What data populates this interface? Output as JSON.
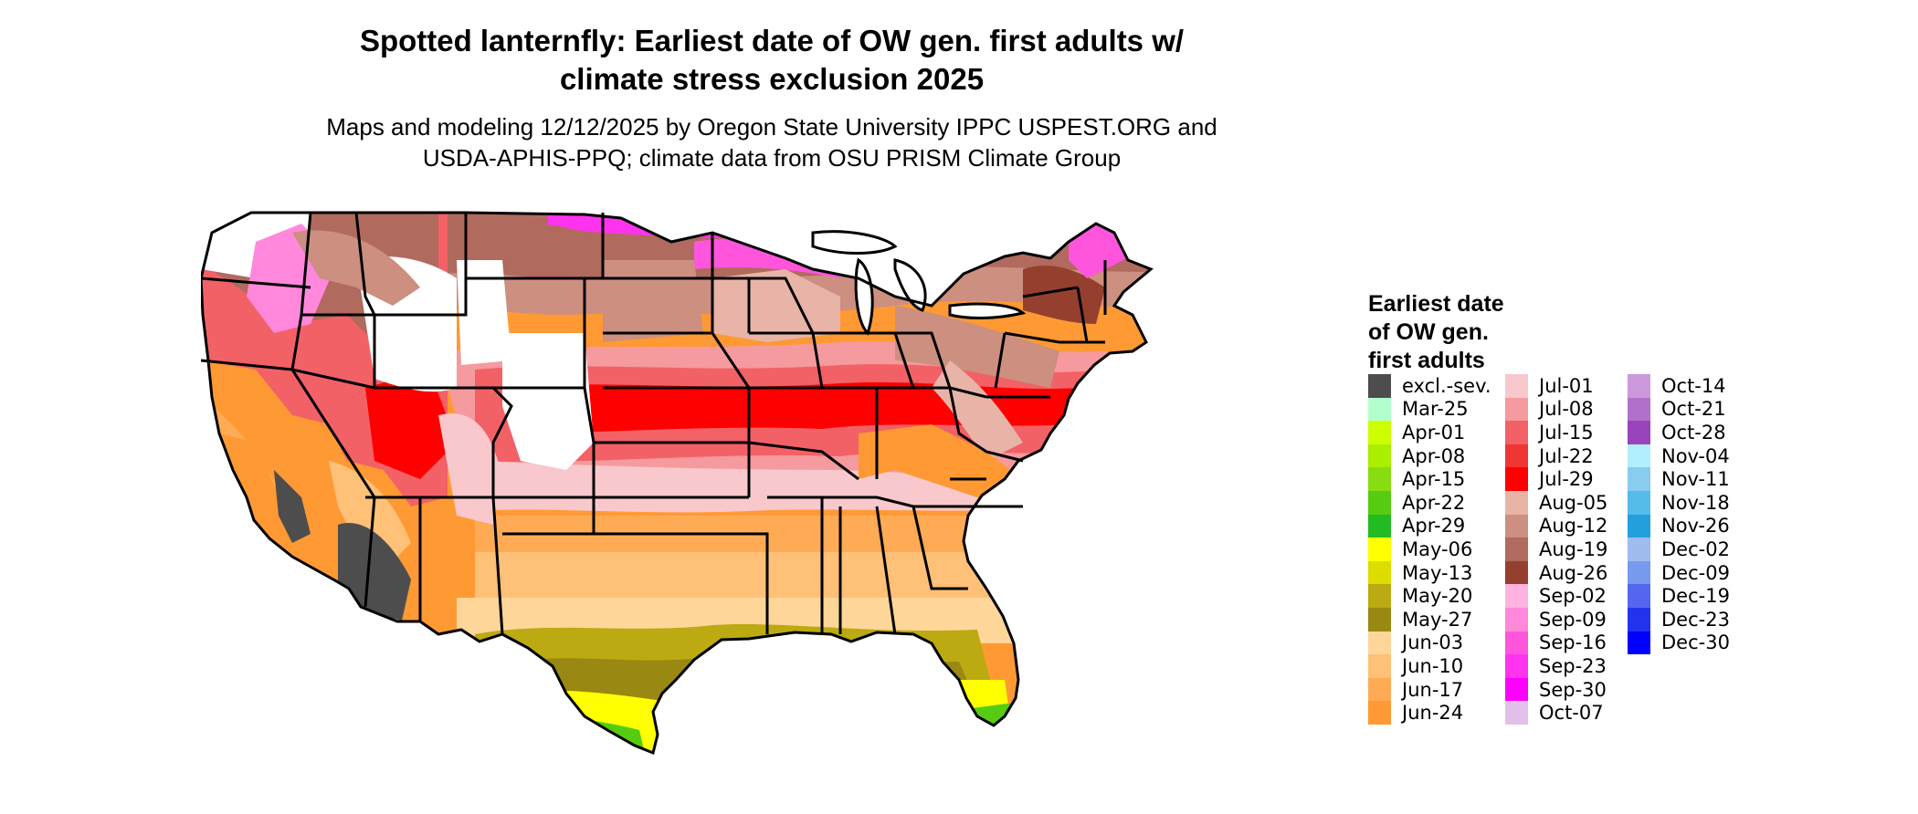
{
  "header": {
    "title_line1": "Spotted lanternfly: Earliest date of OW gen. first adults w/",
    "title_line2": "climate stress exclusion 2025",
    "subtitle_line1": "Maps and modeling 12/12/2025 by Oregon State University IPPC USPEST.ORG and",
    "subtitle_line2": "USDA-APHIS-PPQ; climate data from OSU PRISM Climate Group"
  },
  "legend": {
    "title_line1": "Earliest date",
    "title_line2": "of OW gen.",
    "title_line3": "first adults",
    "columns": [
      [
        {
          "label": "excl.-sev.",
          "color": "#4d4d4d"
        },
        {
          "label": "Mar-25",
          "color": "#b3ffcc"
        },
        {
          "label": "Apr-01",
          "color": "#ccff00"
        },
        {
          "label": "Apr-08",
          "color": "#aaee00"
        },
        {
          "label": "Apr-15",
          "color": "#88dd11"
        },
        {
          "label": "Apr-22",
          "color": "#55cc11"
        },
        {
          "label": "Apr-29",
          "color": "#22bb22"
        },
        {
          "label": "May-06",
          "color": "#ffff00"
        },
        {
          "label": "May-13",
          "color": "#dddd00"
        },
        {
          "label": "May-20",
          "color": "#bbaa11"
        },
        {
          "label": "May-27",
          "color": "#998811"
        },
        {
          "label": "Jun-03",
          "color": "#ffd699"
        },
        {
          "label": "Jun-10",
          "color": "#ffc077"
        },
        {
          "label": "Jun-17",
          "color": "#ffaa55"
        },
        {
          "label": "Jun-24",
          "color": "#ff9933"
        }
      ],
      [
        {
          "label": "Jul-01",
          "color": "#f8c8cc"
        },
        {
          "label": "Jul-08",
          "color": "#f59a9e"
        },
        {
          "label": "Jul-15",
          "color": "#f26166"
        },
        {
          "label": "Jul-22",
          "color": "#f03535"
        },
        {
          "label": "Jul-29",
          "color": "#ff0000"
        },
        {
          "label": "Aug-05",
          "color": "#e8b4a8"
        },
        {
          "label": "Aug-12",
          "color": "#cc8f80"
        },
        {
          "label": "Aug-19",
          "color": "#b06a5e"
        },
        {
          "label": "Aug-26",
          "color": "#95402e"
        },
        {
          "label": "Sep-02",
          "color": "#ffb3e0"
        },
        {
          "label": "Sep-09",
          "color": "#ff88dd"
        },
        {
          "label": "Sep-16",
          "color": "#ff55dd"
        },
        {
          "label": "Sep-23",
          "color": "#ff33ee"
        },
        {
          "label": "Sep-30",
          "color": "#ff00ff"
        },
        {
          "label": "Oct-07",
          "color": "#e3c0ea"
        }
      ],
      [
        {
          "label": "Oct-14",
          "color": "#cc99dd"
        },
        {
          "label": "Oct-21",
          "color": "#b070cc"
        },
        {
          "label": "Oct-28",
          "color": "#9944bb"
        },
        {
          "label": "Nov-04",
          "color": "#b3eeff"
        },
        {
          "label": "Nov-11",
          "color": "#88ccee"
        },
        {
          "label": "Nov-18",
          "color": "#55bbe8"
        },
        {
          "label": "Nov-26",
          "color": "#22a0dd"
        },
        {
          "label": "Dec-02",
          "color": "#a0bbee"
        },
        {
          "label": "Dec-09",
          "color": "#7799ee"
        },
        {
          "label": "Dec-19",
          "color": "#5566ee"
        },
        {
          "label": "Dec-23",
          "color": "#2233ee"
        },
        {
          "label": "Dec-30",
          "color": "#0000ff"
        }
      ]
    ]
  }
}
